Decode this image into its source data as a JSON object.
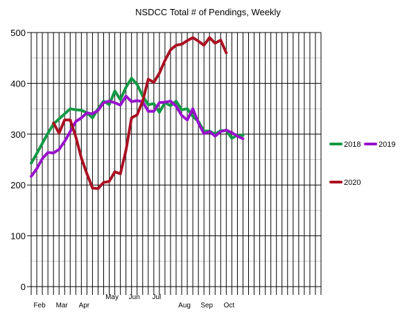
{
  "chart_data": {
    "type": "line",
    "title": "NSDCC Total # of Pendings, Weekly",
    "xlabel": "",
    "ylabel": "",
    "ylim": [
      0,
      500
    ],
    "yticks": [
      0,
      100,
      200,
      300,
      400,
      500
    ],
    "x_count": 52,
    "month_labels": [
      {
        "label": "Feb",
        "week": 1.5
      },
      {
        "label": "Mar",
        "week": 5.5
      },
      {
        "label": "Apr",
        "week": 9.5
      },
      {
        "label": "May",
        "week": 14.5
      },
      {
        "label": "Jun",
        "week": 18.5
      },
      {
        "label": "Jul",
        "week": 22.5
      },
      {
        "label": "Aug",
        "week": 27.5
      },
      {
        "label": "Sep",
        "week": 31.5
      },
      {
        "label": "Oct",
        "week": 35.5
      }
    ],
    "grid": true,
    "legend_position": "right",
    "series": [
      {
        "name": "2018",
        "color": "#119944",
        "values": [
          243,
          262,
          282,
          302,
          320,
          330,
          340,
          350,
          348,
          347,
          342,
          332,
          350,
          365,
          358,
          385,
          368,
          392,
          410,
          398,
          375,
          358,
          360,
          343,
          362,
          356,
          365,
          348,
          350,
          335,
          325,
          306,
          306,
          300,
          307,
          307,
          292,
          298,
          298
        ]
      },
      {
        "name": "2019",
        "color": "#9911cc",
        "values": [
          217,
          232,
          252,
          264,
          263,
          270,
          286,
          305,
          325,
          332,
          342,
          340,
          347,
          362,
          365,
          362,
          357,
          375,
          364,
          366,
          364,
          345,
          345,
          362,
          363,
          365,
          355,
          337,
          328,
          350,
          322,
          301,
          305,
          296,
          305,
          308,
          303,
          296,
          291
        ]
      },
      {
        "name": "2020",
        "color": "#aa1122",
        "values": [
          null,
          null,
          null,
          null,
          322,
          302,
          328,
          328,
          295,
          253,
          222,
          194,
          193,
          205,
          207,
          226,
          222,
          268,
          332,
          338,
          365,
          408,
          402,
          420,
          445,
          466,
          475,
          477,
          484,
          490,
          483,
          475,
          490,
          479,
          485,
          460
        ]
      }
    ]
  }
}
